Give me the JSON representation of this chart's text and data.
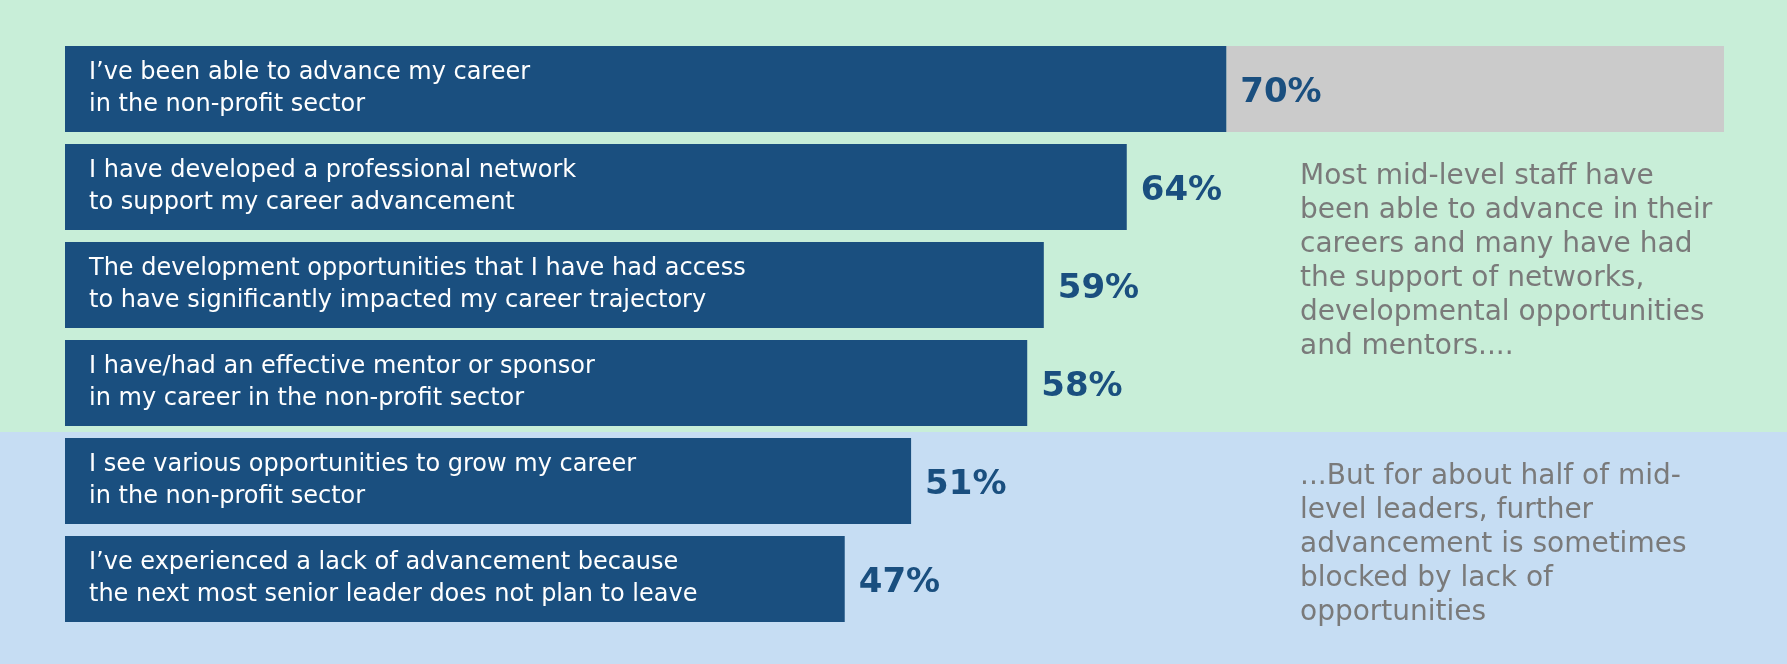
{
  "chart_data": {
    "type": "bar",
    "orientation": "horizontal",
    "stacked": true,
    "categories": [
      "I’ve been able to advance my career\nin the non-profit sector",
      "I have developed a professional network\nto support my career advancement",
      "The development opportunities that I have had access\nto have significantly impacted my career trajectory",
      "I have/had an effective mentor or sponsor\nin my career in the non-profit sector",
      "I see various opportunities to grow my career\nin the non-profit sector",
      "I’ve experienced a lack of advancement because\nthe next most senior leader does not plan to leave"
    ],
    "series": [
      {
        "color": "#1a4f7f",
        "values": [
          70,
          64,
          59,
          58,
          51,
          47
        ],
        "value_labels": [
          "70%",
          "64%",
          "59%",
          "58%",
          "51%",
          "47%"
        ]
      },
      {
        "color": "#cbcbcb",
        "values": [
          30,
          null,
          null,
          null,
          null,
          null
        ]
      }
    ],
    "bands": [
      {
        "axis": "y",
        "from": "I’ve been able to advance my career\nin the non-profit sector",
        "to": "I have/had an effective mentor or sponsor\nin my career in the non-profit sector",
        "color": "#c8eed8"
      },
      {
        "axis": "y",
        "from": "I see various opportunities to grow my career\nin the non-profit sector",
        "to": "I’ve experienced a lack of advancement because\nthe next most senior leader does not plan to leave",
        "color": "#c6ddf3"
      }
    ],
    "tick_labels": false,
    "annotations": [
      "Most mid-level staff have been able to advance in their careers and many have had the support of networks, developmental opportunities and mentors....",
      "...But for about half of mid-level leaders, further advancement is sometimes blocked by lack of opportunities"
    ]
  }
}
